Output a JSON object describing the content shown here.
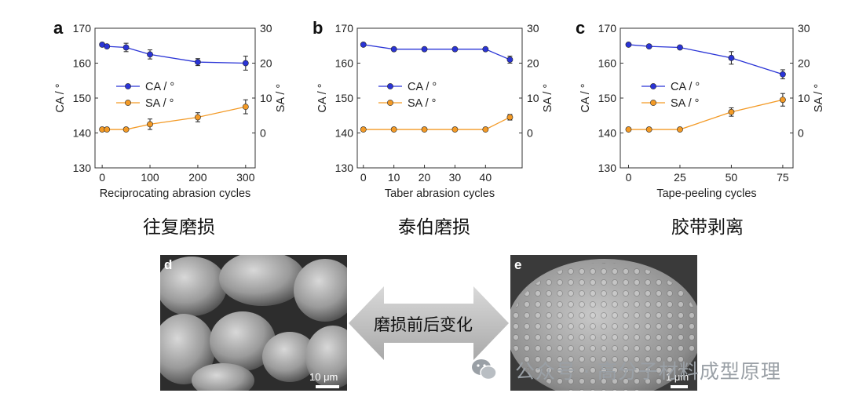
{
  "chart_data": [
    {
      "panel": "a",
      "type": "line",
      "xlabel": "Reciprocating abrasion cycles",
      "ylabel_left": "CA / °",
      "ylabel_right": "SA / °",
      "x_ticks": [
        "0",
        "100",
        "200",
        "300"
      ],
      "xlim": [
        -15,
        320
      ],
      "ylim_left": [
        130,
        170
      ],
      "ylim_right": [
        -10,
        30
      ],
      "y_ticks_left": [
        "130",
        "140",
        "150",
        "160",
        "170"
      ],
      "y_ticks_right": [
        "0",
        "10",
        "20",
        "30"
      ],
      "legend": "center-left",
      "series": [
        {
          "name": "CA / °",
          "axis": "left",
          "color": "#2a34d6",
          "x": [
            0,
            10,
            50,
            100,
            200,
            300
          ],
          "y": [
            165.3,
            164.8,
            164.5,
            162.5,
            160.3,
            160.0
          ],
          "err": [
            0.3,
            0.4,
            1.2,
            1.3,
            1.0,
            2.0
          ]
        },
        {
          "name": "SA / °",
          "axis": "right",
          "color": "#f39a26",
          "x": [
            0,
            10,
            50,
            100,
            200,
            300
          ],
          "y": [
            1.0,
            1.0,
            1.0,
            2.5,
            4.5,
            7.5
          ],
          "err": [
            0.2,
            0.2,
            0.2,
            1.5,
            1.3,
            2.0
          ]
        }
      ]
    },
    {
      "panel": "b",
      "type": "line",
      "xlabel": "Taber abrasion cycles",
      "ylabel_left": "CA / °",
      "ylabel_right": "SA / °",
      "x_ticks": [
        "0",
        "10",
        "20",
        "30",
        "40"
      ],
      "xlim": [
        -2,
        52
      ],
      "ylim_left": [
        130,
        170
      ],
      "ylim_right": [
        -10,
        30
      ],
      "y_ticks_left": [
        "130",
        "140",
        "150",
        "160",
        "170"
      ],
      "y_ticks_right": [
        "0",
        "10",
        "20",
        "30"
      ],
      "legend": "center-left",
      "series": [
        {
          "name": "CA / °",
          "axis": "left",
          "color": "#2a34d6",
          "x": [
            0,
            10,
            20,
            30,
            40,
            48
          ],
          "y": [
            165.3,
            164.0,
            164.0,
            164.0,
            164.0,
            161.0
          ],
          "err": [
            0.3,
            0.3,
            0.3,
            0.3,
            0.3,
            1.0
          ]
        },
        {
          "name": "SA / °",
          "axis": "right",
          "color": "#f39a26",
          "x": [
            0,
            10,
            20,
            30,
            40,
            48
          ],
          "y": [
            1.0,
            1.0,
            1.0,
            1.0,
            1.0,
            4.5
          ],
          "err": [
            0.2,
            0.2,
            0.2,
            0.2,
            0.2,
            0.8
          ]
        }
      ]
    },
    {
      "panel": "c",
      "type": "line",
      "xlabel": "Tape-peeling cycles",
      "ylabel_left": "CA / °",
      "ylabel_right": "SA / °",
      "x_ticks": [
        "0",
        "25",
        "50",
        "75"
      ],
      "xlim": [
        -4,
        80
      ],
      "ylim_left": [
        130,
        170
      ],
      "ylim_right": [
        -10,
        30
      ],
      "y_ticks_left": [
        "130",
        "140",
        "150",
        "160",
        "170"
      ],
      "y_ticks_right": [
        "0",
        "10",
        "20",
        "30"
      ],
      "legend": "center-left",
      "series": [
        {
          "name": "CA / °",
          "axis": "left",
          "color": "#2a34d6",
          "x": [
            0,
            10,
            25,
            50,
            75
          ],
          "y": [
            165.3,
            164.8,
            164.5,
            161.5,
            156.8
          ],
          "err": [
            0.3,
            0.3,
            0.3,
            1.8,
            1.3
          ]
        },
        {
          "name": "SA / °",
          "axis": "right",
          "color": "#f39a26",
          "x": [
            0,
            10,
            25,
            50,
            75
          ],
          "y": [
            1.0,
            1.0,
            1.0,
            6.0,
            9.5
          ],
          "err": [
            0.2,
            0.2,
            0.2,
            1.2,
            1.8
          ]
        }
      ]
    }
  ],
  "captions": {
    "a": "往复磨损",
    "b": "泰伯磨损",
    "c": "胶带剥离"
  },
  "sem": {
    "d_label": "d",
    "d_scale": "10 μm",
    "e_label": "e",
    "e_scale": "1 μm",
    "arrow_text": "磨损前后变化"
  },
  "watermark": "公众号 · 高分子材料成型原理"
}
